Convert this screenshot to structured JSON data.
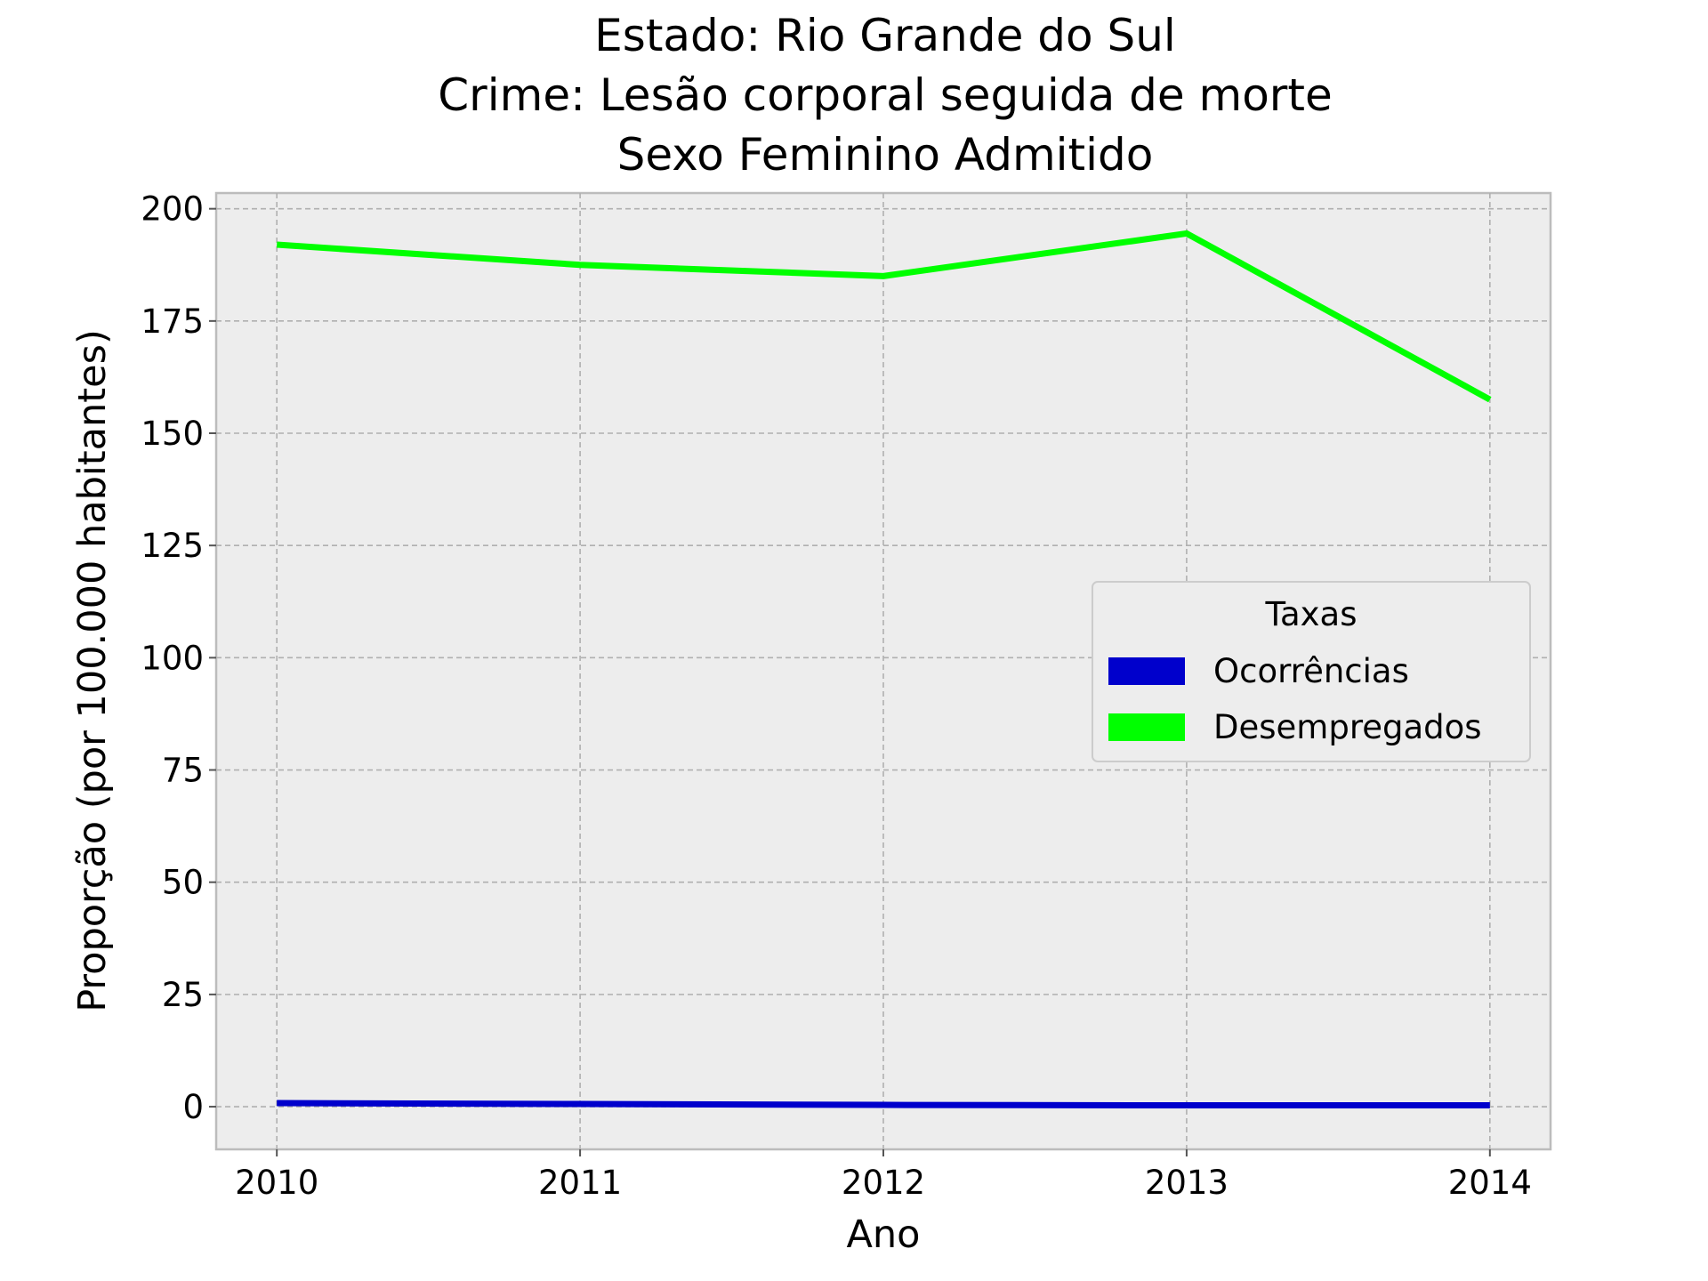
{
  "chart_data": {
    "type": "line",
    "title_lines": [
      "Estado: Rio Grande do Sul",
      "Crime: Lesão corporal seguida de morte",
      "Sexo  Feminino   Admitido"
    ],
    "xlabel": "Ano",
    "ylabel": "Proporção (por 100.000 habitantes)",
    "x": [
      2010,
      2011,
      2012,
      2013,
      2014
    ],
    "x_tick_labels": [
      "2010",
      "2011",
      "2012",
      "2013",
      "2014"
    ],
    "y_ticks": [
      0,
      25,
      50,
      75,
      100,
      125,
      150,
      175,
      200
    ],
    "y_tick_labels": [
      "0",
      "25",
      "50",
      "75",
      "100",
      "125",
      "150",
      "175",
      "200"
    ],
    "xlim": [
      2009.8,
      2014.2
    ],
    "ylim": [
      -9.5,
      203.5
    ],
    "grid": true,
    "legend": {
      "title": "Taxas",
      "placement": "center-right"
    },
    "series": [
      {
        "name": "Ocorrências",
        "color": "#0000cc",
        "values": [
          0.8,
          0.6,
          0.4,
          0.3,
          0.3
        ]
      },
      {
        "name": "Desempregados",
        "color": "#00ff00",
        "values": [
          192,
          187.5,
          185,
          194.5,
          157.5
        ]
      }
    ]
  }
}
